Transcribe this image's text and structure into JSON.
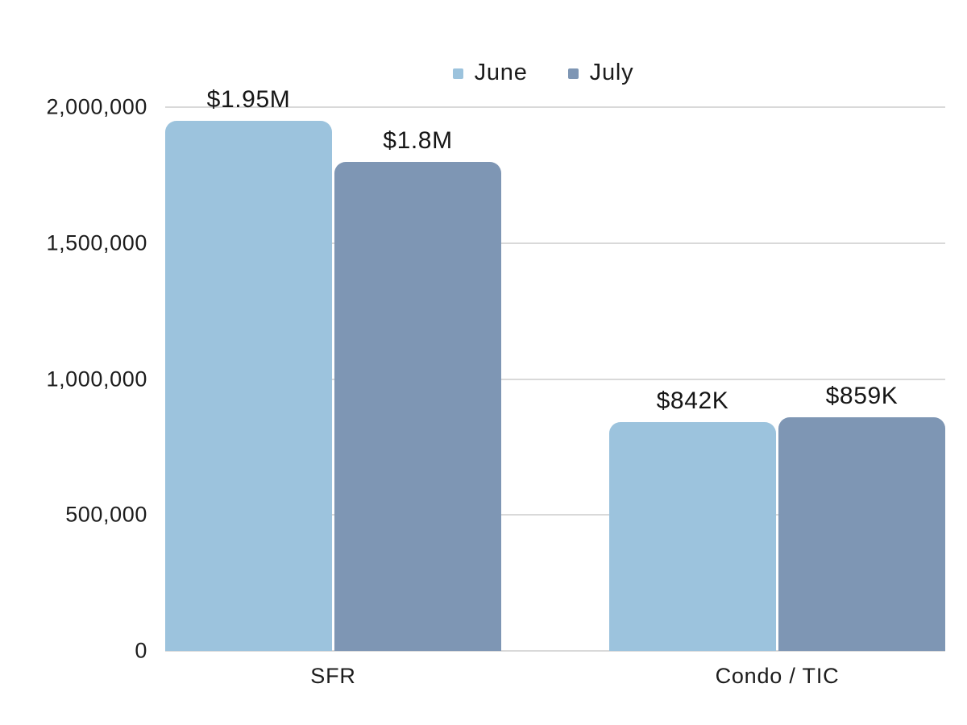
{
  "chart_data": {
    "type": "bar",
    "categories": [
      "SFR",
      "Condo / TIC"
    ],
    "series": [
      {
        "name": "June",
        "color": "#9cc3dd",
        "values": [
          1950000,
          842000
        ],
        "labels": [
          "$1.95M",
          "$842K"
        ]
      },
      {
        "name": "July",
        "color": "#7e96b4",
        "values": [
          1800000,
          859000
        ],
        "labels": [
          "$1.8M",
          "$859K"
        ]
      }
    ],
    "ylim": [
      0,
      2000000
    ],
    "yticks": [
      0,
      500000,
      1000000,
      1500000,
      2000000
    ],
    "ytick_labels": [
      "0",
      "500,000",
      "1,000,000",
      "1,500,000",
      "2,000,000"
    ],
    "xlabel": "",
    "ylabel": "",
    "title": "",
    "grid": true,
    "legend_position": "top"
  },
  "legend": {
    "items": [
      {
        "label": "June",
        "color": "#9cc3dd"
      },
      {
        "label": "July",
        "color": "#7e96b4"
      }
    ]
  },
  "colors": {
    "gridline": "#d9d9d9",
    "text": "#1c1c1c",
    "background": "#ffffff"
  }
}
